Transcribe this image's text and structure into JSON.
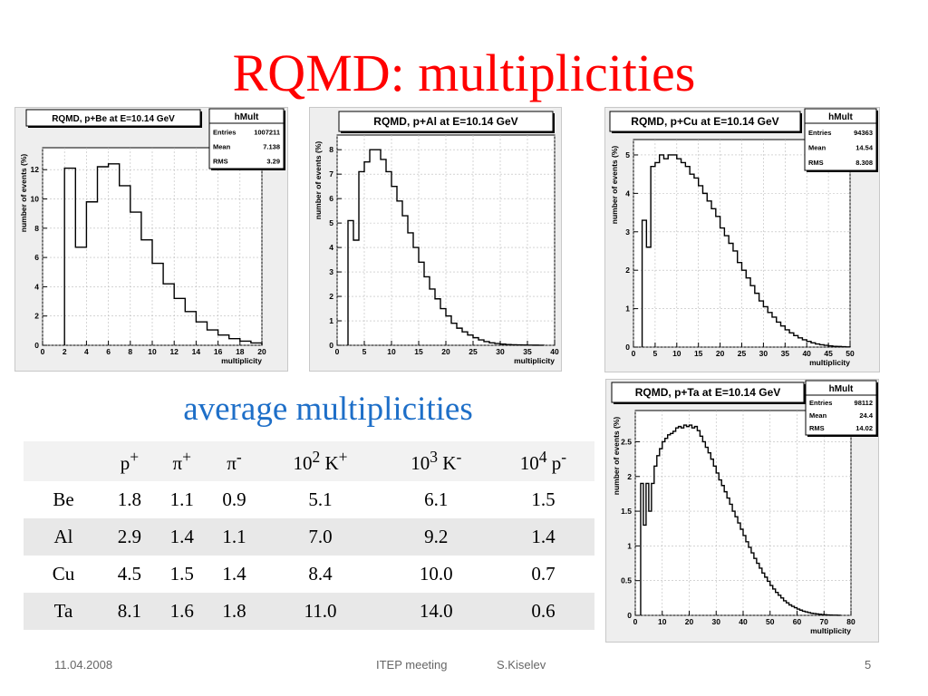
{
  "slide": {
    "title": "RQMD: multiplicities",
    "subtitle": "average multiplicities",
    "footer": {
      "date": "11.04.2008",
      "meeting": "ITEP meeting",
      "author": "S.Kiselev",
      "page": "5"
    }
  },
  "table": {
    "headers": [
      {
        "base": "p",
        "sup": "+"
      },
      {
        "base": "π",
        "sup": "+"
      },
      {
        "base": "π",
        "sup": "-"
      },
      {
        "pre": "10",
        "presup": "2",
        "base": " K",
        "sup": "+"
      },
      {
        "pre": "10",
        "presup": "3",
        "base": " K",
        "sup": "-"
      },
      {
        "pre": "10",
        "presup": "4",
        "base": " p",
        "sup": "-"
      }
    ],
    "rows": [
      {
        "label": "Be",
        "values": [
          "1.8",
          "1.1",
          "0.9",
          "5.1",
          "6.1",
          "1.5"
        ]
      },
      {
        "label": "Al",
        "values": [
          "2.9",
          "1.4",
          "1.1",
          "7.0",
          "9.2",
          "1.4"
        ]
      },
      {
        "label": "Cu",
        "values": [
          "4.5",
          "1.5",
          "1.4",
          "8.4",
          "10.0",
          "0.7"
        ]
      },
      {
        "label": "Ta",
        "values": [
          "8.1",
          "1.6",
          "1.8",
          "11.0",
          "14.0",
          "0.6"
        ]
      }
    ]
  },
  "chart_data": [
    {
      "type": "histogram",
      "title": "RQMD, p+Be at E=10.14 GeV",
      "xlabel": "multiplicity",
      "ylabel": "number of events (%)",
      "xlim": [
        0,
        20
      ],
      "ylim": [
        0,
        13.5
      ],
      "xticks": [
        0,
        2,
        4,
        6,
        8,
        10,
        12,
        14,
        16,
        18,
        20
      ],
      "yticks": [
        0,
        2,
        4,
        6,
        8,
        10,
        12
      ],
      "grid": true,
      "stats": {
        "name": "hMult",
        "entries": "1007211",
        "mean": "7.138",
        "rms": "3.29"
      },
      "bins": {
        "start": 2,
        "width": 1,
        "values": [
          12.1,
          6.7,
          9.8,
          12.2,
          12.4,
          10.9,
          9.1,
          7.2,
          5.6,
          4.2,
          3.2,
          2.3,
          1.6,
          1.05,
          0.7,
          0.45,
          0.28,
          0.16
        ]
      }
    },
    {
      "type": "histogram",
      "title": "RQMD, p+Al at E=10.14 GeV",
      "xlabel": "multiplicity",
      "ylabel": "number of events (%)",
      "xlim": [
        0,
        40
      ],
      "ylim": [
        0,
        8.6
      ],
      "xticks": [
        0,
        5,
        10,
        15,
        20,
        25,
        30,
        35,
        40
      ],
      "yticks": [
        0,
        1,
        2,
        3,
        4,
        5,
        6,
        7,
        8
      ],
      "grid": true,
      "bins": {
        "start": 2,
        "width": 1,
        "values": [
          5.1,
          4.3,
          7.1,
          7.5,
          8.0,
          8.0,
          7.6,
          7.1,
          6.5,
          5.9,
          5.3,
          4.6,
          4.0,
          3.4,
          2.8,
          2.3,
          1.9,
          1.5,
          1.2,
          0.9,
          0.7,
          0.55,
          0.42,
          0.31,
          0.22,
          0.15,
          0.1,
          0.07,
          0.05,
          0.03,
          0.02,
          0.015,
          0.01,
          0.008,
          0.005,
          0.003
        ]
      }
    },
    {
      "type": "histogram",
      "title": "RQMD, p+Cu at E=10.14 GeV",
      "xlabel": "multiplicity",
      "ylabel": "number of events (%)",
      "xlim": [
        0,
        50
      ],
      "ylim": [
        0,
        5.4
      ],
      "xticks": [
        0,
        5,
        10,
        15,
        20,
        25,
        30,
        35,
        40,
        45,
        50
      ],
      "yticks": [
        0,
        1,
        2,
        3,
        4,
        5
      ],
      "grid": true,
      "stats": {
        "name": "hMult",
        "entries": "94363",
        "mean": "14.54",
        "rms": "8.308"
      },
      "bins": {
        "start": 2,
        "width": 1,
        "values": [
          3.3,
          2.6,
          4.7,
          4.8,
          5.0,
          4.9,
          5.0,
          5.0,
          4.9,
          4.8,
          4.7,
          4.5,
          4.4,
          4.2,
          4.0,
          3.8,
          3.6,
          3.4,
          3.1,
          2.9,
          2.7,
          2.5,
          2.2,
          2.0,
          1.8,
          1.6,
          1.4,
          1.2,
          1.05,
          0.9,
          0.78,
          0.65,
          0.55,
          0.45,
          0.37,
          0.3,
          0.24,
          0.19,
          0.15,
          0.11,
          0.08,
          0.06,
          0.045,
          0.03,
          0.02,
          0.015,
          0.01,
          0.005
        ]
      }
    },
    {
      "type": "histogram",
      "title": "RQMD, p+Ta at E=10.14 GeV",
      "xlabel": "multiplicity",
      "ylabel": "number of events (%)",
      "xlim": [
        0,
        80
      ],
      "ylim": [
        0,
        2.95
      ],
      "xticks": [
        0,
        10,
        20,
        30,
        40,
        50,
        60,
        70,
        80
      ],
      "yticks": [
        0,
        0.5,
        1,
        1.5,
        2,
        2.5
      ],
      "grid": true,
      "stats": {
        "name": "hMult",
        "entries": "98112",
        "mean": "24.4",
        "rms": "14.02"
      },
      "bins": {
        "start": 2,
        "width": 1,
        "values": [
          1.9,
          1.3,
          1.9,
          1.5,
          1.9,
          2.15,
          2.3,
          2.4,
          2.5,
          2.55,
          2.6,
          2.62,
          2.65,
          2.7,
          2.72,
          2.7,
          2.74,
          2.72,
          2.74,
          2.7,
          2.72,
          2.66,
          2.58,
          2.5,
          2.42,
          2.34,
          2.25,
          2.15,
          2.05,
          1.95,
          1.87,
          1.78,
          1.69,
          1.6,
          1.5,
          1.42,
          1.33,
          1.24,
          1.15,
          1.06,
          0.98,
          0.9,
          0.82,
          0.75,
          0.68,
          0.61,
          0.55,
          0.49,
          0.43,
          0.38,
          0.33,
          0.29,
          0.25,
          0.21,
          0.18,
          0.15,
          0.13,
          0.11,
          0.09,
          0.075,
          0.06,
          0.05,
          0.04,
          0.03,
          0.025,
          0.02,
          0.015,
          0.01,
          0.008,
          0.006,
          0.004,
          0.003,
          0.002,
          0.001
        ]
      }
    }
  ]
}
